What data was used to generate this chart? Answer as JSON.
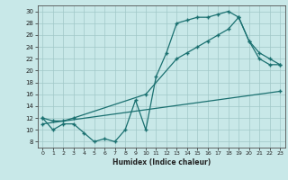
{
  "xlabel": "Humidex (Indice chaleur)",
  "background_color": "#c8e8e8",
  "grid_color": "#a0c8c8",
  "line_color": "#1a7070",
  "xlim": [
    -0.5,
    23.5
  ],
  "ylim": [
    7,
    31
  ],
  "xticks": [
    0,
    1,
    2,
    3,
    4,
    5,
    6,
    7,
    8,
    9,
    10,
    11,
    12,
    13,
    14,
    15,
    16,
    17,
    18,
    19,
    20,
    21,
    22,
    23
  ],
  "yticks": [
    8,
    10,
    12,
    14,
    16,
    18,
    20,
    22,
    24,
    26,
    28,
    30
  ],
  "line1_x": [
    0,
    1,
    2,
    3,
    4,
    5,
    6,
    7,
    8,
    9,
    10,
    11,
    12,
    13,
    14,
    15,
    16,
    17,
    18,
    19,
    20,
    21,
    22,
    23
  ],
  "line1_y": [
    12,
    10,
    11,
    11,
    9.5,
    8,
    8.5,
    8,
    10,
    15,
    10,
    19,
    23,
    28,
    28.5,
    29,
    29,
    29.5,
    30,
    29,
    25,
    22,
    21,
    21
  ],
  "line2_x": [
    0,
    1,
    2,
    3,
    10,
    13,
    14,
    15,
    16,
    17,
    18,
    19,
    20,
    21,
    22,
    23
  ],
  "line2_y": [
    12,
    11.5,
    11.5,
    12,
    16,
    22,
    23,
    24,
    25,
    26,
    27,
    29,
    25,
    23,
    22,
    21
  ],
  "line3_x": [
    0,
    23
  ],
  "line3_y": [
    11,
    16.5
  ]
}
